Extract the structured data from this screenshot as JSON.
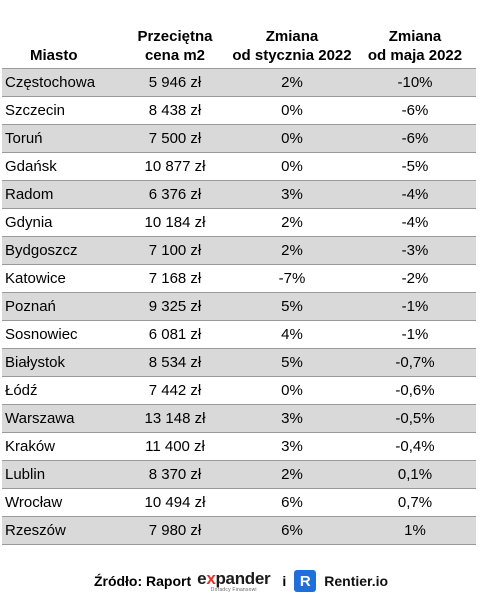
{
  "table": {
    "headers": [
      "Miasto",
      "Przeciętna\ncena m2",
      "Zmiana\nod stycznia 2022",
      "Zmiana\nod maja 2022"
    ],
    "header_lines": [
      [
        "Miasto"
      ],
      [
        "Przeciętna",
        "cena m2"
      ],
      [
        "Zmiana",
        "od stycznia 2022"
      ],
      [
        "Zmiana",
        "od maja 2022"
      ]
    ],
    "rows": [
      [
        "Częstochowa",
        "5 946 zł",
        "2%",
        "-10%"
      ],
      [
        "Szczecin",
        "8 438 zł",
        "0%",
        "-6%"
      ],
      [
        "Toruń",
        "7 500 zł",
        "0%",
        "-6%"
      ],
      [
        "Gdańsk",
        "10 877 zł",
        "0%",
        "-5%"
      ],
      [
        "Radom",
        "6 376 zł",
        "3%",
        "-4%"
      ],
      [
        "Gdynia",
        "10 184 zł",
        "2%",
        "-4%"
      ],
      [
        "Bydgoszcz",
        "7 100 zł",
        "2%",
        "-3%"
      ],
      [
        "Katowice",
        "7 168 zł",
        "-7%",
        "-2%"
      ],
      [
        "Poznań",
        "9 325 zł",
        "5%",
        "-1%"
      ],
      [
        "Sosnowiec",
        "6 081 zł",
        "4%",
        "-1%"
      ],
      [
        "Białystok",
        "8 534 zł",
        "5%",
        "-0,7%"
      ],
      [
        "Łódź",
        "7 442 zł",
        "0%",
        "-0,6%"
      ],
      [
        "Warszawa",
        "13 148 zł",
        "3%",
        "-0,5%"
      ],
      [
        "Kraków",
        "11 400 zł",
        "3%",
        "-0,4%"
      ],
      [
        "Lublin",
        "8 370 zł",
        "2%",
        "0,1%"
      ],
      [
        "Wrocław",
        "10 494 zł",
        "6%",
        "0,7%"
      ],
      [
        "Rzeszów",
        "7 980 zł",
        "6%",
        "1%"
      ]
    ],
    "stripe_color": "#d9d9d9"
  },
  "footer": {
    "source_label": "Źródło: Raport",
    "expander_word_pre": "e",
    "expander_word_x": "x",
    "expander_word_post": "pander",
    "expander_tagline": "Doradcy Finansowi",
    "conjunction": "i",
    "rentier_badge": "R",
    "rentier_name": "Rentier.io",
    "colors": {
      "expander_accent": "#e5332a",
      "rentier_blue": "#1e6fd9"
    }
  }
}
